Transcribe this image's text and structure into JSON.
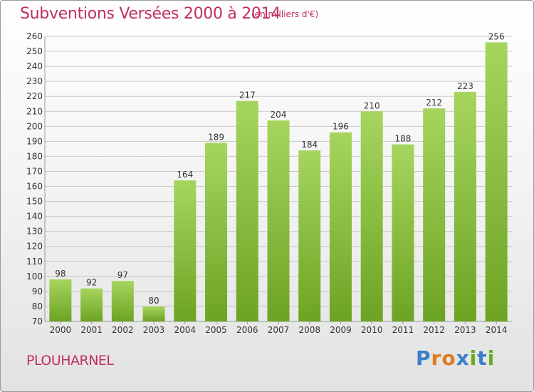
{
  "header": {
    "title": "Subventions Versées 2000 à 2014",
    "subtitle": "(en milliers d'€)"
  },
  "commune": "PLOUHARNEL",
  "logo": {
    "text": "Proxiti",
    "letters": [
      "P",
      "r",
      "o",
      "x",
      "i",
      "t",
      "i"
    ],
    "letter_colors": [
      "#3a7fc8",
      "#e07a1f",
      "#e07a1f",
      "#3a7fc8",
      "#6aaa1e",
      "#3a7fc8",
      "#6aaa1e"
    ]
  },
  "colors": {
    "title": "#c0305a",
    "bar_light": "#a6d55e",
    "bar_dark": "#6da323",
    "grid": "#c8c8c8"
  },
  "chart_data": {
    "type": "bar",
    "categories": [
      "2000",
      "2001",
      "2002",
      "2003",
      "2004",
      "2005",
      "2006",
      "2007",
      "2008",
      "2009",
      "2010",
      "2011",
      "2012",
      "2013",
      "2014"
    ],
    "values": [
      98,
      92,
      97,
      80,
      164,
      189,
      217,
      204,
      184,
      196,
      210,
      188,
      212,
      223,
      256
    ],
    "ylim": [
      70,
      260
    ],
    "ytick_step": 10,
    "grid": true,
    "value_labels": true
  }
}
